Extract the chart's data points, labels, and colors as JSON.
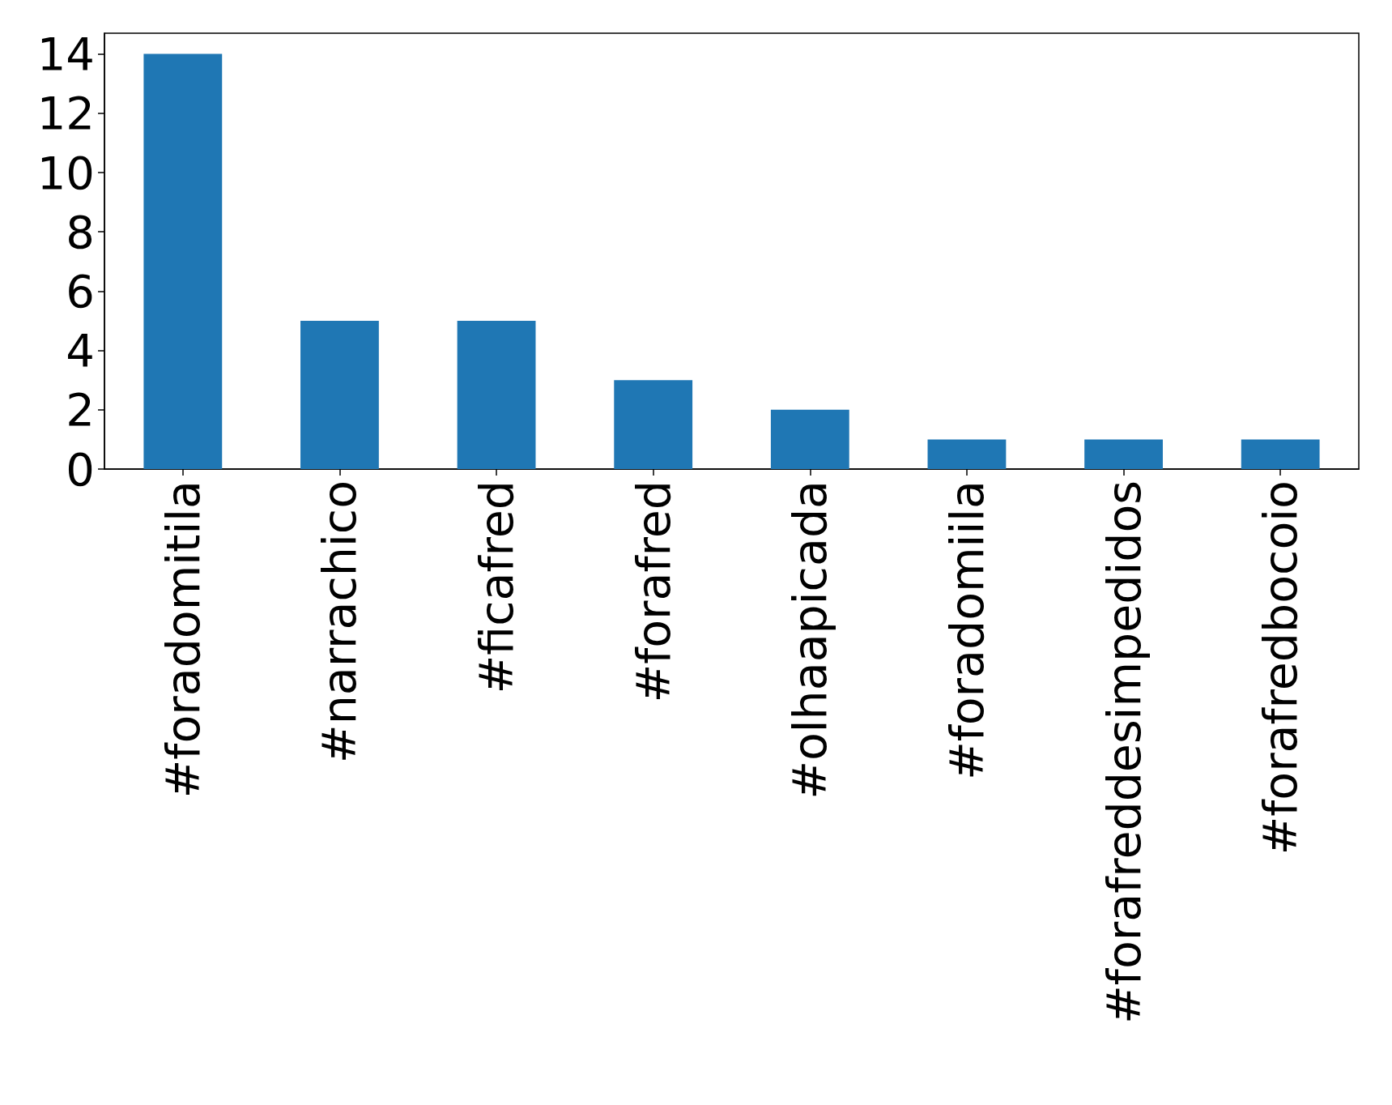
{
  "chart_data": {
    "type": "bar",
    "categories": [
      "#foradomitila",
      "#narrachico",
      "#ficafred",
      "#forafred",
      "#olhaapicada",
      "#foradomiila",
      "#forafreddesimpedidos",
      "#forafredbocoio"
    ],
    "values": [
      14,
      5,
      5,
      3,
      2,
      1,
      1,
      1
    ],
    "color": "#1f77b4",
    "ylim": [
      0,
      14.7
    ],
    "yticks": [
      0,
      2,
      4,
      6,
      8,
      10,
      12,
      14
    ],
    "grid": false
  }
}
